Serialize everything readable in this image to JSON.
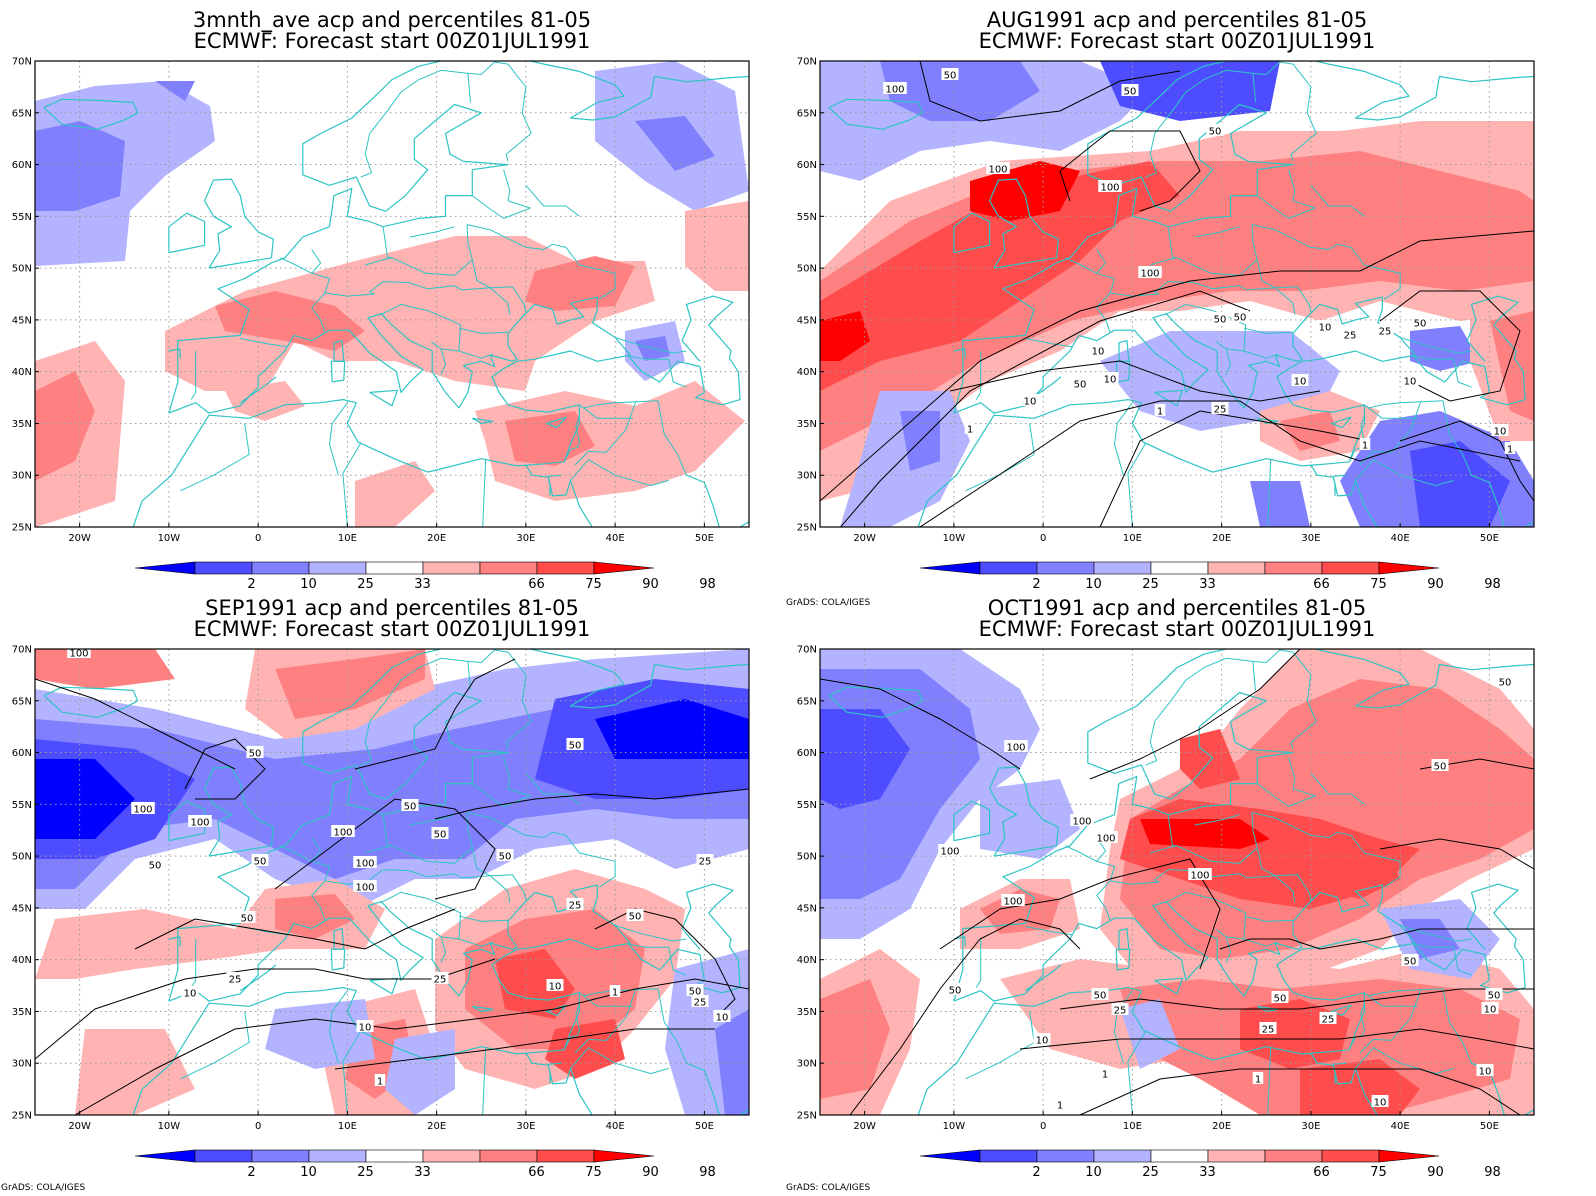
{
  "colors": {
    "p2": "#0000ff",
    "p10": "#4d4dff",
    "p25": "#8080ff",
    "p33": "#b3b3ff",
    "mid": "#ffffff",
    "p66": "#ffb3b3",
    "p75": "#ff8080",
    "p90": "#ff4d4d",
    "p98": "#ff0000",
    "coast": "#2ec4c4",
    "contour": "#000000",
    "grid": "#9a9a9a"
  },
  "axes": {
    "lat_labels": [
      "70N",
      "65N",
      "60N",
      "55N",
      "50N",
      "45N",
      "40N",
      "35N",
      "30N",
      "25N"
    ],
    "lon_labels": [
      "20W",
      "10W",
      "0",
      "10E",
      "20E",
      "30E",
      "40E",
      "50E"
    ],
    "lon_range": [
      -25,
      55
    ],
    "lat_range": [
      25,
      70
    ]
  },
  "colorbar": {
    "labels": [
      "2",
      "10",
      "25",
      "33",
      "66",
      "75",
      "90",
      "98"
    ]
  },
  "credit": "GrADS: COLA/IGES",
  "panels": [
    {
      "title_line1": "3mnth_ave acp and percentiles 81-05",
      "title_line2": "ECMWF: Forecast start 00Z01JUL1991",
      "show_credit": false,
      "contour_labels": []
    },
    {
      "title_line1": "AUG1991 acp and percentiles 81-05",
      "title_line2": "ECMWF: Forecast start 00Z01JUL1991",
      "show_credit": true,
      "contour_labels": [
        "50",
        "100",
        "50",
        "50",
        "100",
        "100",
        "100",
        "50",
        "50",
        "25",
        "50",
        "10",
        "10",
        "25",
        "10",
        "10",
        "50",
        "10",
        "10",
        "1",
        "1",
        "25",
        "10",
        "1",
        "1"
      ]
    },
    {
      "title_line1": "SEP1991 acp and percentiles 81-05",
      "title_line2": "ECMWF: Forecast start 00Z01JUL1991",
      "show_credit": true,
      "contour_labels": [
        "100",
        "50",
        "50",
        "100",
        "100",
        "100",
        "50",
        "100",
        "50",
        "50",
        "50",
        "50",
        "25",
        "50",
        "100",
        "25",
        "50",
        "25",
        "25",
        "10",
        "10",
        "50",
        "25",
        "10",
        "10",
        "1",
        "1"
      ]
    },
    {
      "title_line1": "OCT1991 acp and percentiles 81-05",
      "title_line2": "ECMWF: Forecast start 00Z01JUL1991",
      "show_credit": true,
      "contour_labels": [
        "50",
        "100",
        "50",
        "100",
        "100",
        "100",
        "100",
        "100",
        "50",
        "50",
        "50",
        "50",
        "50",
        "25",
        "25",
        "10",
        "10",
        "25",
        "10",
        "1",
        "1",
        "1",
        "10",
        "10"
      ]
    }
  ]
}
